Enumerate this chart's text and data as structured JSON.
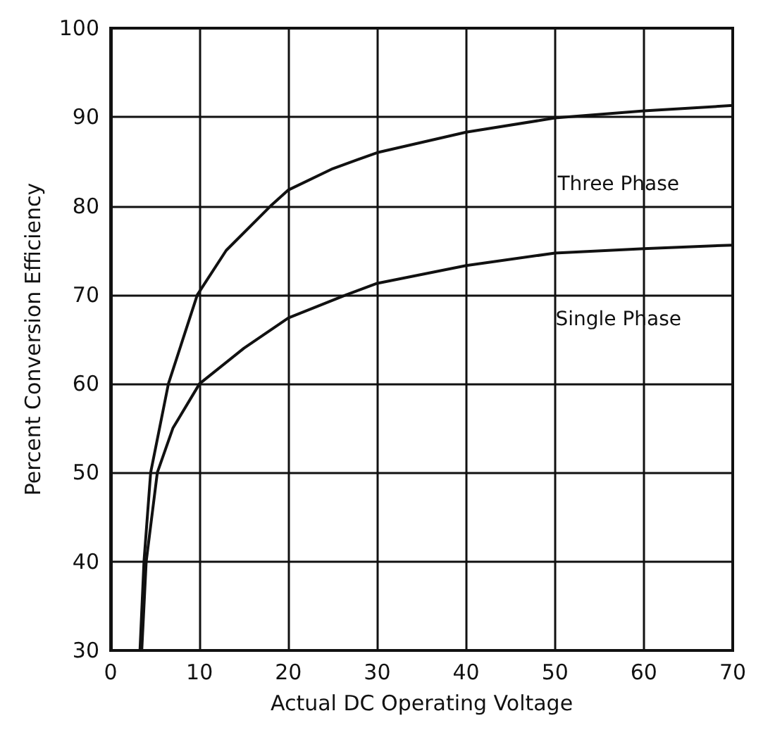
{
  "chart_data": {
    "type": "line",
    "xlabel": "Actual DC Operating Voltage",
    "ylabel": "Percent Conversion Efficiency",
    "xlim": [
      0,
      70
    ],
    "xticks": [
      0,
      10,
      20,
      30,
      40,
      50,
      60,
      70
    ],
    "ylim": [
      30,
      100
    ],
    "yticks": [
      30,
      40,
      50,
      60,
      70,
      80,
      90,
      100
    ],
    "grid": true,
    "legend": false,
    "marker": "none",
    "line_style": "solid",
    "series": [
      {
        "name": "Three Phase",
        "color": "#111111",
        "x": [
          3.3,
          3.75,
          4.5,
          6.5,
          9.75,
          13,
          18,
          20,
          25,
          30,
          40,
          50,
          60,
          70
        ],
        "values": [
          30,
          40,
          50,
          60,
          70,
          75,
          80,
          81.8,
          84.2,
          86,
          88.3,
          89.9,
          90.7,
          91.3
        ]
      },
      {
        "name": "Single Phase",
        "color": "#111111",
        "x": [
          3.5,
          4,
          5.25,
          7,
          10,
          15,
          20,
          26.5,
          30,
          40,
          50,
          60,
          70
        ],
        "values": [
          30,
          40,
          50,
          55,
          60,
          64,
          67.4,
          70,
          71.3,
          73.3,
          74.7,
          75.2,
          75.6
        ]
      }
    ]
  }
}
